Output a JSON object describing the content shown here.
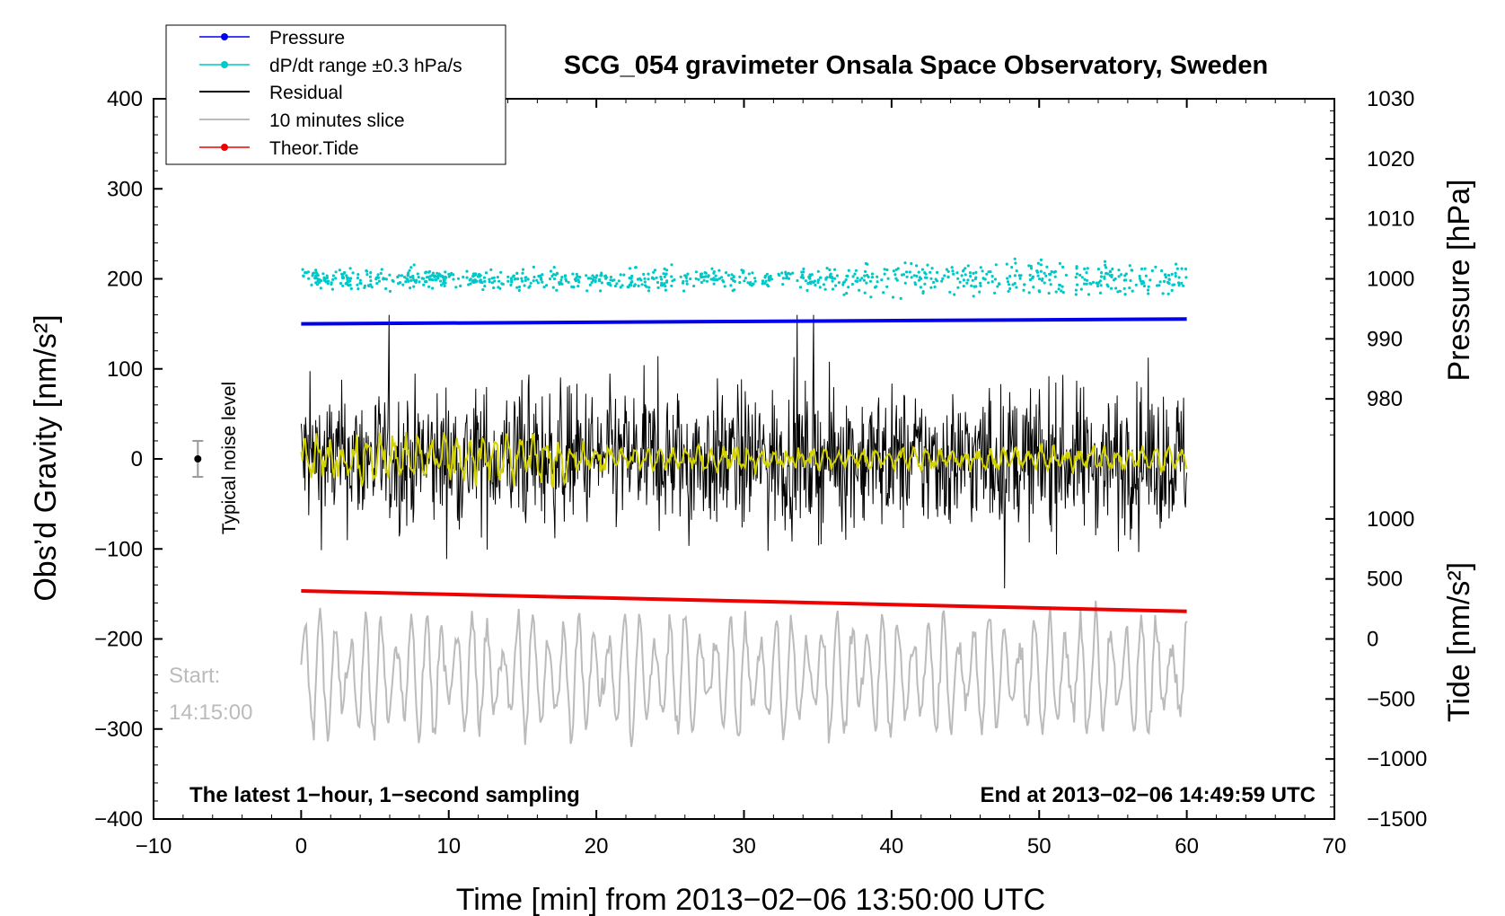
{
  "chart_data": {
    "type": "line",
    "title": "SCG_054 gravimeter Onsala Space Observatory, Sweden",
    "xlabel": "Time [min] from 2013−02−06 13:50:00 UTC",
    "xlim": [
      -10,
      70
    ],
    "xticks": [
      "−10",
      "0",
      "10",
      "20",
      "30",
      "40",
      "50",
      "60",
      "70"
    ],
    "y_left": {
      "label": "Obs’d Gravity [nm/s²]",
      "lim": [
        -400,
        400
      ],
      "ticks": [
        "400",
        "300",
        "200",
        "100",
        "0",
        "−100",
        "−200",
        "−300",
        "−400"
      ]
    },
    "y_right_pressure": {
      "label": "Pressure [hPa]",
      "ticks": [
        "1030",
        "1020",
        "1010",
        "1000",
        "990",
        "980"
      ],
      "note": "1000 hPa aligned with gravity 200; 10 hPa per ~66.7 nm/s²"
    },
    "y_right_tide": {
      "label": "Tide [nm/s²]",
      "ticks": [
        "1000",
        "500",
        "0",
        "−500",
        "−1000",
        "−1500"
      ],
      "note": "0 nm/s² aligned with gravity −200; 500 nm/s² per ~66.7 nm/s²"
    },
    "series": [
      {
        "name": "Pressure",
        "color": "#0000ee",
        "style": "line-with-points",
        "x": [
          0,
          60
        ],
        "y_hPa": [
          992.5,
          993.3
        ]
      },
      {
        "name": "dP/dt range ±0.3 hPa/s",
        "color": "#00c8c8",
        "style": "scatter",
        "x_range": [
          0,
          60
        ],
        "center_hPa": 1000,
        "spread_hPa": 2.5
      },
      {
        "name": "Residual",
        "color": "#000000",
        "style": "line",
        "x_range": [
          0,
          60
        ],
        "center": 0,
        "typical_amplitude": 70,
        "peak_range": [
          -165,
          160
        ]
      },
      {
        "name": "10 minutes slice",
        "color": "#bbbbbb",
        "style": "line",
        "x_range": [
          0,
          60
        ],
        "center_tide": -300,
        "amplitude_tide": 600
      },
      {
        "name": "Theor.Tide",
        "color": "#ee0000",
        "style": "line-with-points",
        "x": [
          0,
          60
        ],
        "y_tide": [
          400,
          230
        ]
      }
    ],
    "smoothed_residual": {
      "color": "#d2d200",
      "x_range": [
        0,
        60
      ],
      "center": 0,
      "amplitude": 15
    },
    "noise_level": {
      "label": "Typical noise level",
      "x": -7,
      "y": 0,
      "error": 20
    },
    "annotations": {
      "start_label": "Start:",
      "start_time": "14:15:00",
      "footer_left": "The latest 1−hour, 1−second sampling",
      "footer_right": "End at 2013−02−06 14:49:59 UTC"
    },
    "legend": {
      "position": "top-left",
      "entries": [
        "Pressure",
        "dP/dt range ±0.3 hPa/s",
        "Residual",
        "10 minutes slice",
        "Theor.Tide"
      ]
    }
  }
}
